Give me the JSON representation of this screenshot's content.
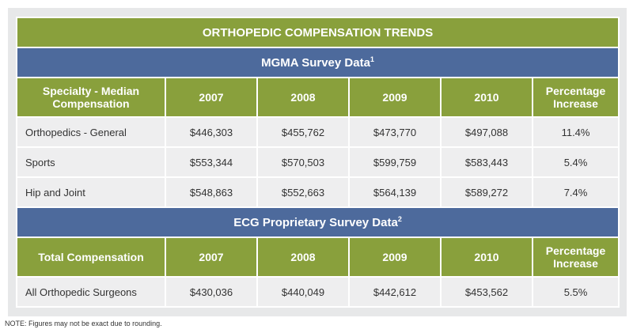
{
  "title": "ORTHOPEDIC COMPENSATION TRENDS",
  "sections": [
    {
      "heading": "MGMA Survey Data",
      "footnote": "1",
      "columns": [
        "Specialty - Median Compensation",
        "2007",
        "2008",
        "2009",
        "2010",
        "Percentage Increase"
      ],
      "rows": [
        [
          "Orthopedics - General",
          "$446,303",
          "$455,762",
          "$473,770",
          "$497,088",
          "11.4%"
        ],
        [
          "Sports",
          "$553,344",
          "$570,503",
          "$599,759",
          "$583,443",
          "5.4%"
        ],
        [
          "Hip and Joint",
          "$548,863",
          "$552,663",
          "$564,139",
          "$589,272",
          "7.4%"
        ]
      ]
    },
    {
      "heading": "ECG Proprietary Survey Data",
      "footnote": "2",
      "columns": [
        "Total Compensation",
        "2007",
        "2008",
        "2009",
        "2010",
        "Percentage Increase"
      ],
      "rows": [
        [
          "All Orthopedic Surgeons",
          "$430,036",
          "$440,049",
          "$442,612",
          "$453,562",
          "5.5%"
        ]
      ]
    }
  ],
  "note": "NOTE:  Figures may not be exact due to rounding.",
  "colors": {
    "green": "#89a03c",
    "blue": "#4d6a9c",
    "row_bg": "#eeeeef",
    "frame_bg": "#e7e8e9"
  }
}
